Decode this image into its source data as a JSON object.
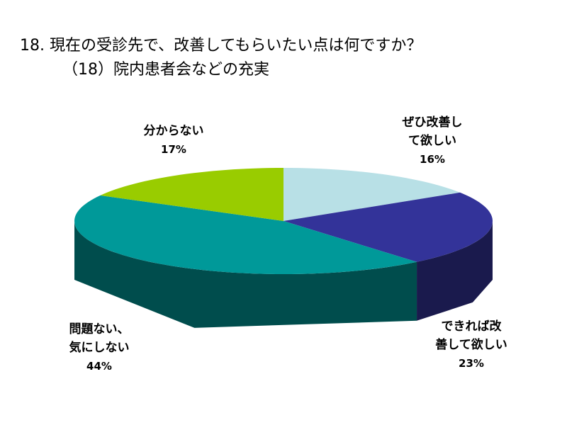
{
  "chart_data": {
    "type": "pie3d",
    "title": "18. 現在の受診先で、改善してもらいたい点は何ですか？",
    "subtitle": "（18）院内患者会などの充実",
    "categories": [
      "ぜひ改善し\nて欲しい",
      "できれば改\n善して欲しい",
      "問題ない、\n気にしない",
      "分からない"
    ],
    "values": [
      16,
      23,
      44,
      17
    ],
    "value_labels": [
      "16%",
      "23%",
      "44%",
      "17%"
    ],
    "colors": [
      "#b8e0e6",
      "#333399",
      "#009999",
      "#99cc00"
    ]
  }
}
